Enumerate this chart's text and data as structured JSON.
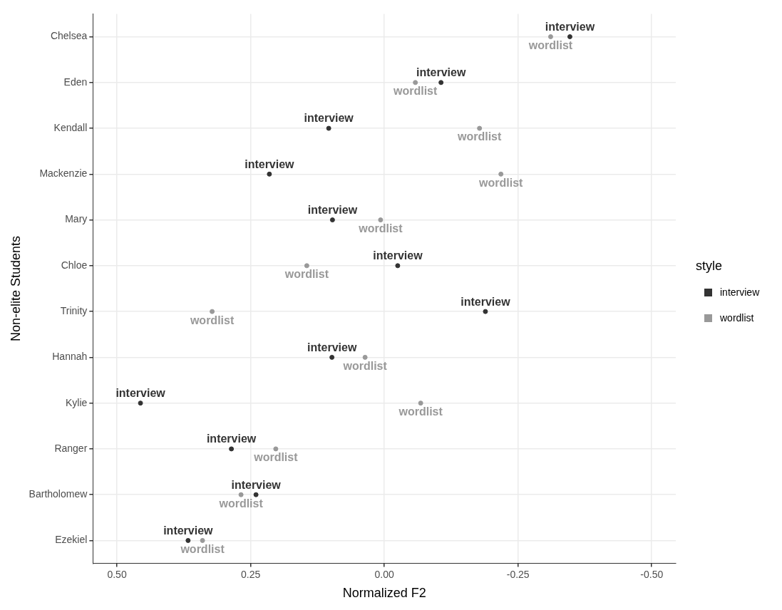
{
  "chart_data": {
    "type": "scatter",
    "xlabel": "Normalized F2",
    "ylabel": "Non-elite Students",
    "legend_title": "style",
    "legend": "right",
    "grid": true,
    "marker": "circle",
    "orientation": "horizontal",
    "categories": [
      "Chelsea",
      "Eden",
      "Kendall",
      "Mackenzie",
      "Mary",
      "Chloe",
      "Trinity",
      "Hannah",
      "Kylie",
      "Ranger",
      "Bartholomew",
      "Ezekiel"
    ],
    "xlim": [
      0.545,
      -0.545
    ],
    "xticks": [
      {
        "value": 0.5,
        "label": "0.50"
      },
      {
        "value": 0.25,
        "label": "0.25"
      },
      {
        "value": 0,
        "label": "0.00"
      },
      {
        "value": -0.25,
        "label": "-0.25"
      },
      {
        "value": -0.5,
        "label": "-0.50"
      }
    ],
    "series": [
      {
        "name": "interview",
        "color": "#333333",
        "values": [
          -0.347,
          -0.106,
          0.104,
          0.215,
          0.097,
          -0.025,
          -0.189,
          0.098,
          0.456,
          0.286,
          0.24,
          0.367
        ]
      },
      {
        "name": "wordlist",
        "color": "#999999",
        "values": [
          -0.311,
          -0.058,
          -0.178,
          -0.218,
          0.007,
          0.145,
          0.322,
          0.036,
          -0.068,
          0.203,
          0.268,
          0.34
        ]
      }
    ]
  }
}
